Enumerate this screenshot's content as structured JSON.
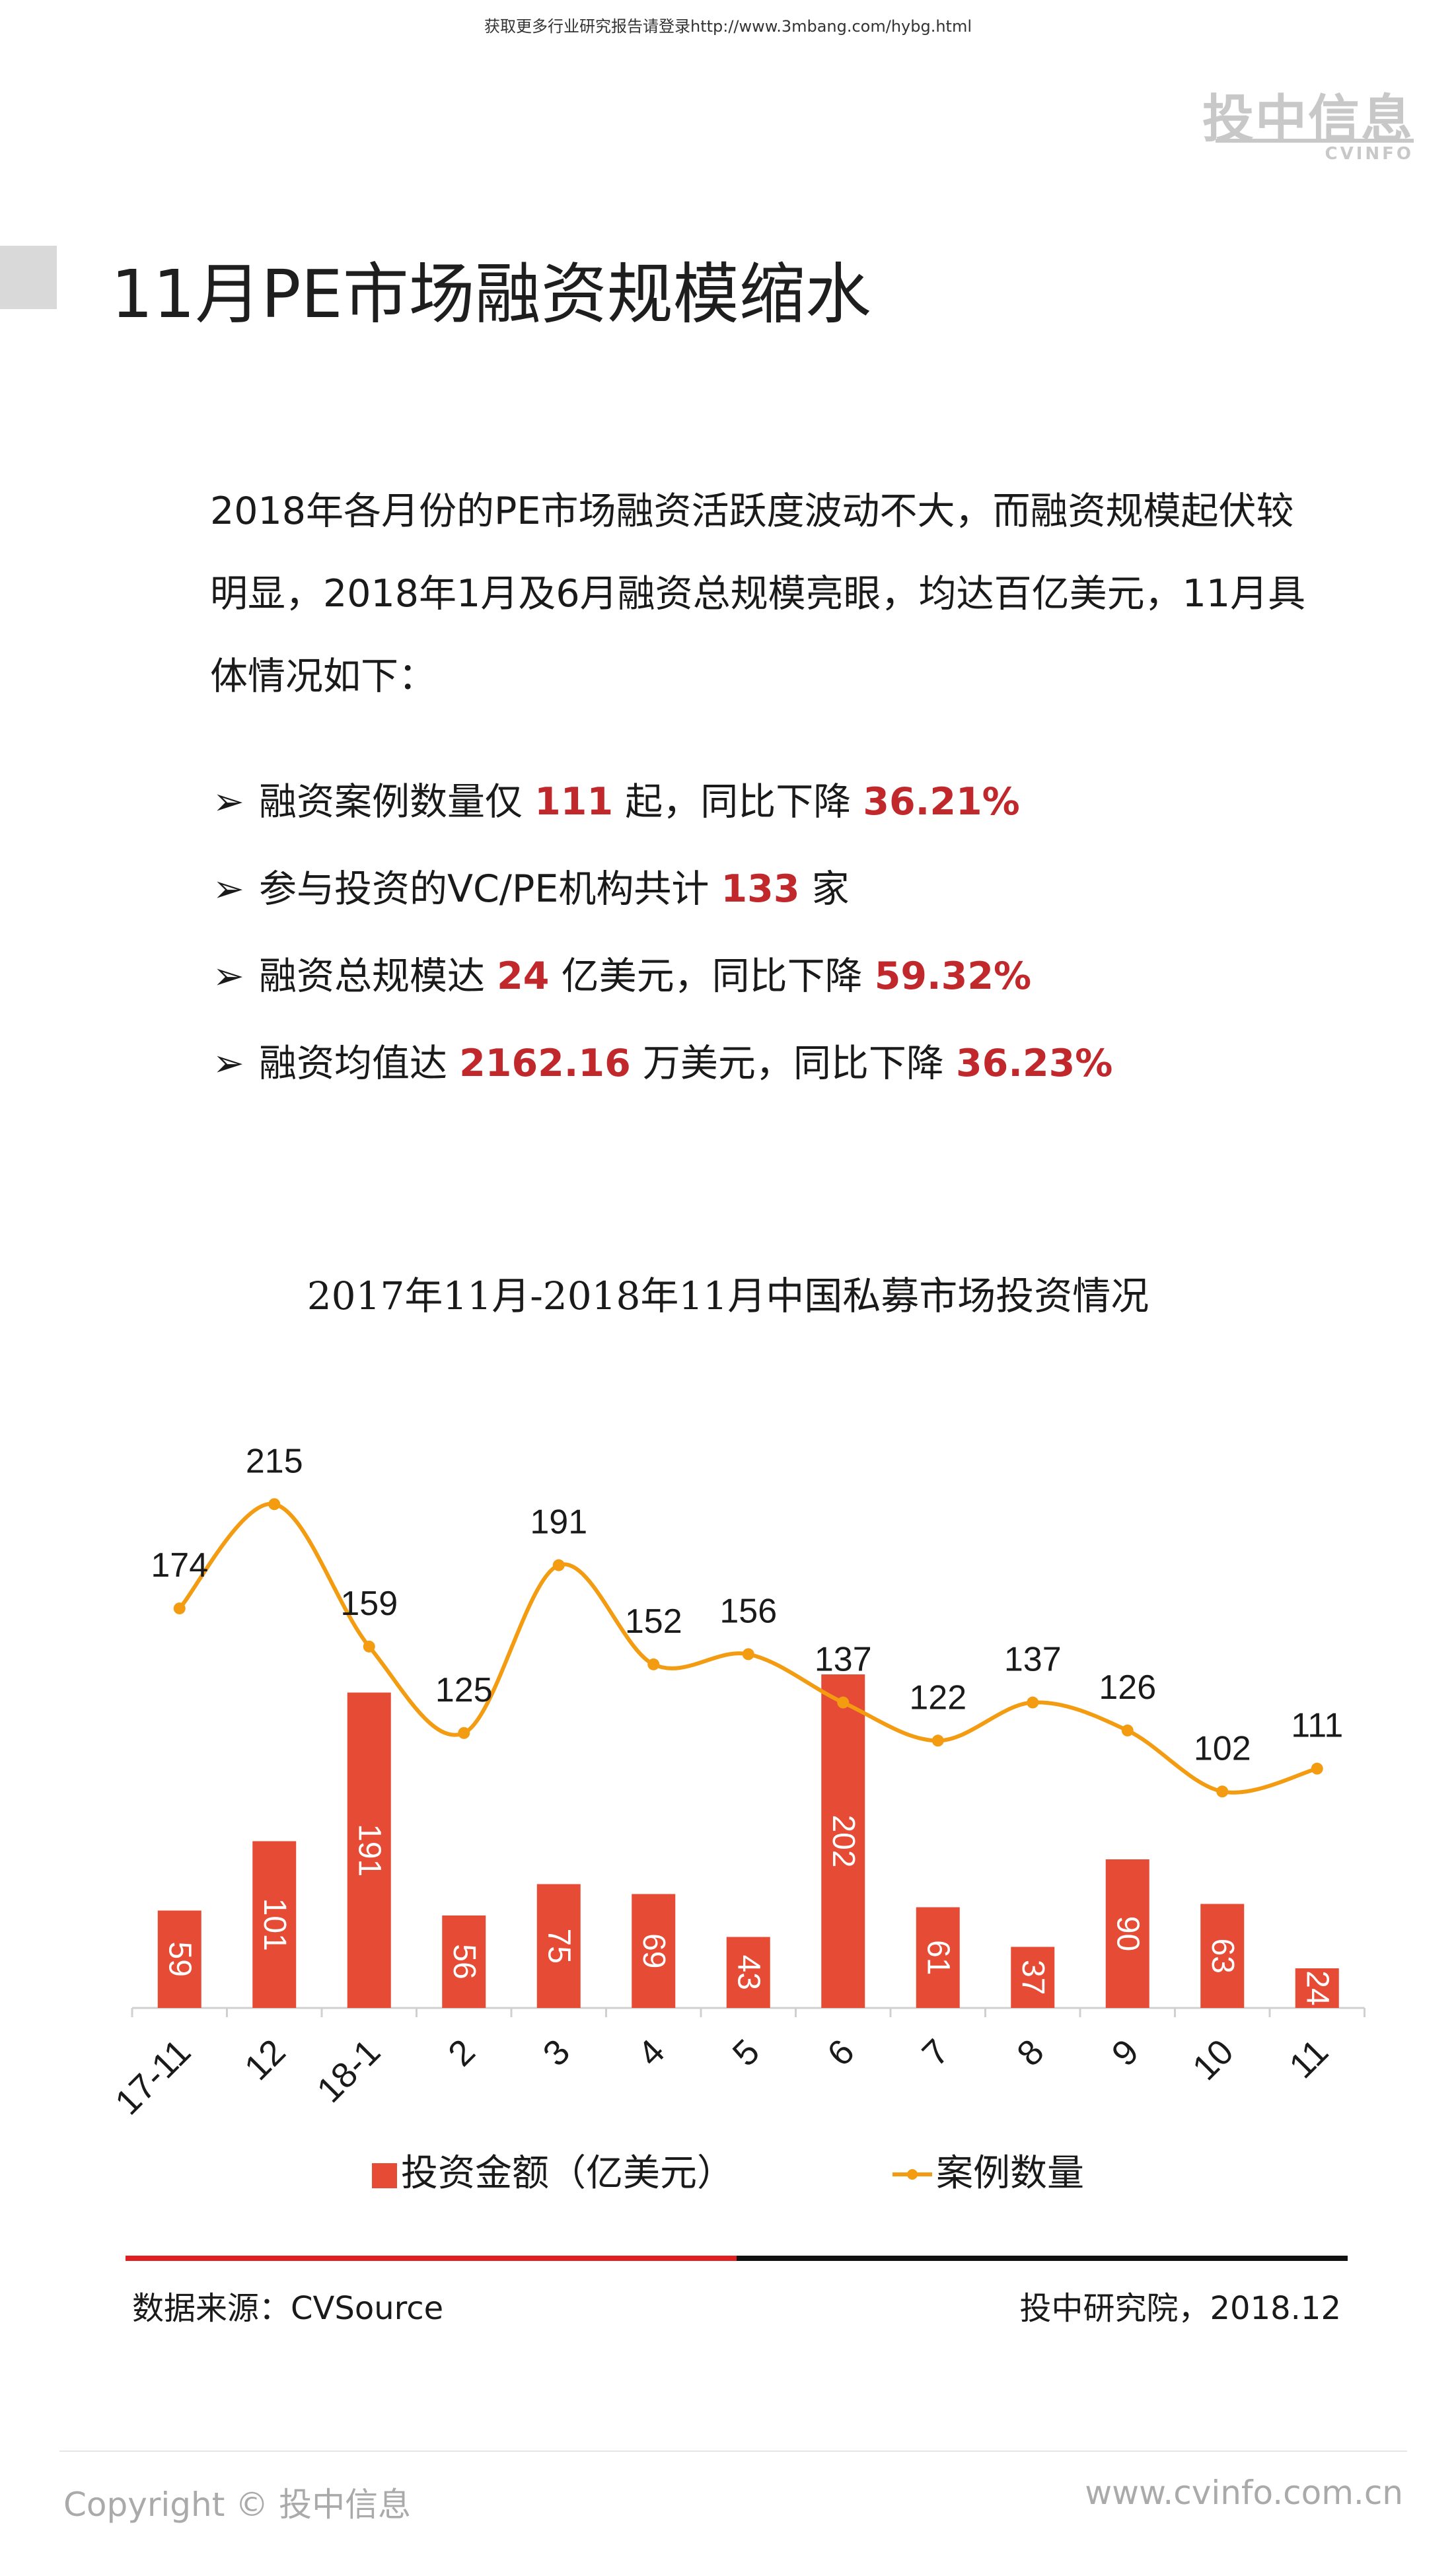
{
  "header": {
    "top_link": "获取更多行业研究报告请登录http://www.3mbang.com/hybg.html",
    "logo_cn": "投中信息",
    "logo_en": "CVINFO"
  },
  "page_title": "11月PE市场融资规模缩水",
  "intro": "2018年各月份的PE市场融资活跃度波动不大，而融资规模起伏较明显，2018年1月及6月融资总规模亮眼，均达百亿美元，11月具体情况如下：",
  "bullets": [
    {
      "pre": "融资案例数量仅 ",
      "v1": "111",
      "mid": " 起，同比下降 ",
      "v2": "36.21%",
      "post": ""
    },
    {
      "pre": "参与投资的VC/PE机构共计 ",
      "v1": "133",
      "mid": " 家",
      "v2": "",
      "post": ""
    },
    {
      "pre": "融资总规模达 ",
      "v1": "24",
      "mid": " 亿美元，同比下降 ",
      "v2": "59.32%",
      "post": ""
    },
    {
      "pre": "融资均值达 ",
      "v1": "2162.16",
      "mid": " 万美元，同比下降 ",
      "v2": "36.23%",
      "post": ""
    }
  ],
  "chart_data": {
    "type": "bar",
    "title": "2017年11月-2018年11月中国私募市场投资情况",
    "categories": [
      "17-11",
      "12",
      "18-1",
      "2",
      "3",
      "4",
      "5",
      "6",
      "7",
      "8",
      "9",
      "10",
      "11"
    ],
    "series": [
      {
        "name": "投资金额（亿美元）",
        "type": "bar",
        "color": "#e64b35",
        "values": [
          59,
          101,
          191,
          56,
          75,
          69,
          43,
          202,
          61,
          37,
          90,
          63,
          24
        ]
      },
      {
        "name": "案例数量",
        "type": "line",
        "color": "#f39c12",
        "values": [
          174,
          215,
          159,
          125,
          191,
          152,
          156,
          137,
          122,
          137,
          126,
          102,
          111
        ]
      }
    ],
    "legend": "bottom"
  },
  "footer": {
    "source": "数据来源：CVSource",
    "credit": "投中研究院，2018.12",
    "copyright": "Copyright © 投中信息",
    "site": "www.cvinfo.com.cn"
  }
}
